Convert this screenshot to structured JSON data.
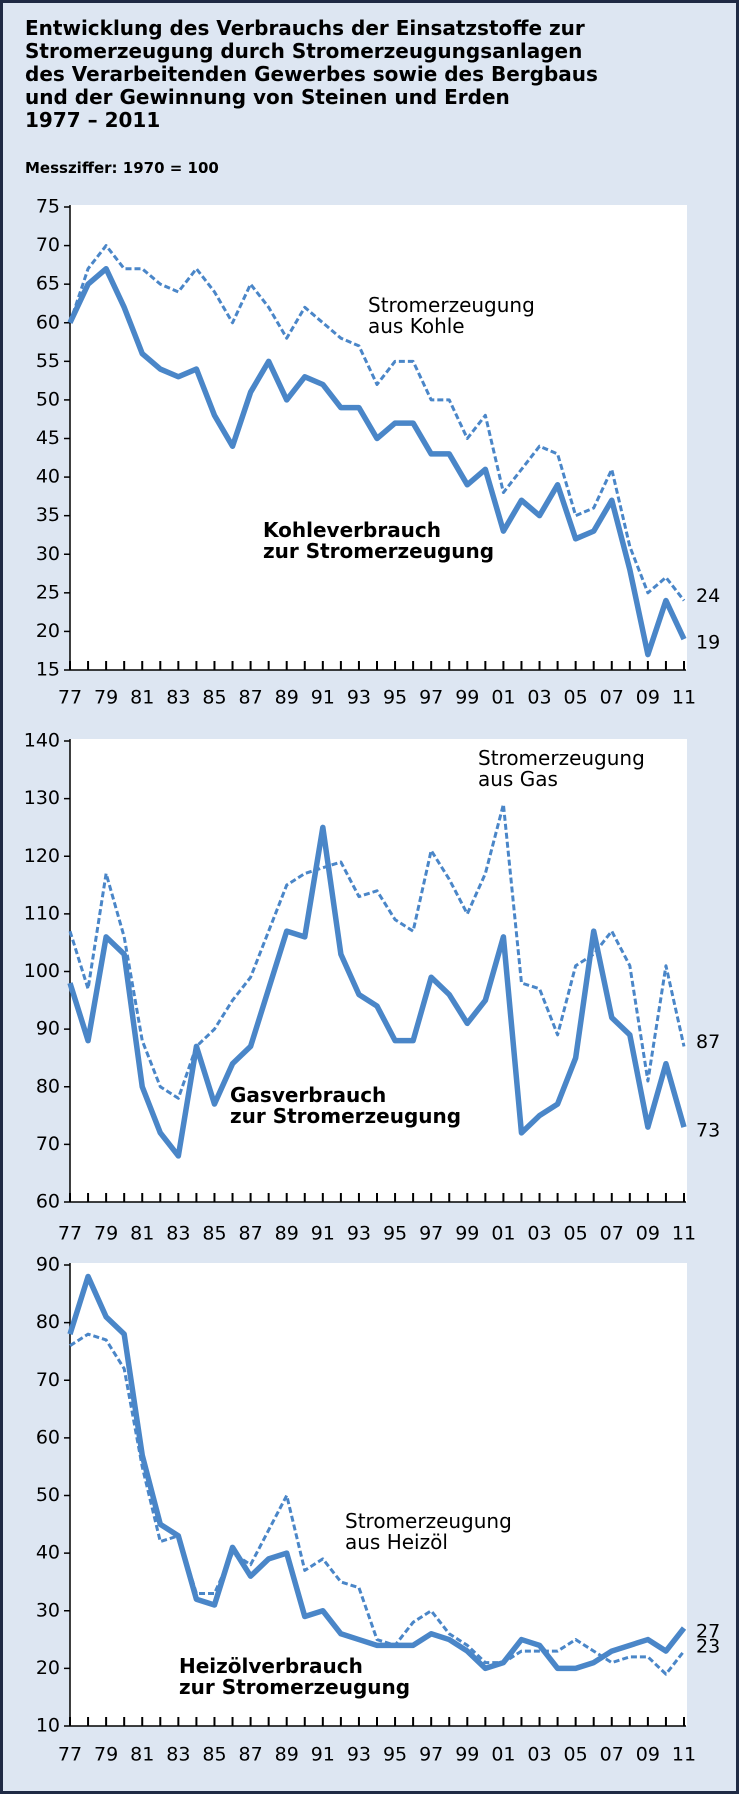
{
  "title": "Entwicklung des Verbrauchs der Einsatzstoffe zur\nStromerzeugung durch Stromerzeugungsanlagen\ndes Verarbeitenden Gewerbes sowie des Bergbaus\nund der Gewinnung von Steinen und Erden\n1977 – 2011",
  "subtitle": "Messziffer: 1970 = 100",
  "chart_data": [
    {
      "type": "line",
      "categories": [
        "77",
        null,
        "79",
        null,
        "81",
        null,
        "83",
        null,
        "85",
        null,
        "87",
        null,
        "89",
        null,
        "91",
        null,
        "93",
        null,
        "95",
        null,
        "97",
        null,
        "99",
        null,
        "01",
        null,
        "03",
        null,
        "05",
        null,
        "07",
        null,
        "09",
        null,
        "11"
      ],
      "ylim": [
        15,
        75
      ],
      "yticks": [
        15,
        20,
        25,
        30,
        35,
        40,
        45,
        50,
        55,
        60,
        65,
        70,
        75
      ],
      "series": [
        {
          "name": "Stromerzeugung\naus Kohle",
          "color": "#4a86c8",
          "style": "dashed",
          "values": [
            60,
            67,
            70,
            67,
            67,
            65,
            64,
            67,
            64,
            60,
            65,
            62,
            58,
            62,
            60,
            58,
            57,
            52,
            55,
            55,
            50,
            50,
            45,
            48,
            38,
            41,
            44,
            43,
            35,
            36,
            41,
            31,
            25,
            27,
            24
          ]
        },
        {
          "name": "Kohleverbrauch\nzur Stromerzeugung",
          "color": "#4a86c8",
          "style": "solid",
          "values": [
            60,
            65,
            67,
            62,
            56,
            54,
            53,
            54,
            48,
            44,
            51,
            55,
            50,
            53,
            52,
            49,
            49,
            45,
            47,
            47,
            43,
            43,
            39,
            41,
            33,
            37,
            35,
            39,
            32,
            33,
            37,
            28,
            17,
            24,
            19
          ]
        }
      ]
    },
    {
      "type": "line",
      "categories": [
        "77",
        null,
        "79",
        null,
        "81",
        null,
        "83",
        null,
        "85",
        null,
        "87",
        null,
        "89",
        null,
        "91",
        null,
        "93",
        null,
        "95",
        null,
        "97",
        null,
        "99",
        null,
        "01",
        null,
        "03",
        null,
        "05",
        null,
        "07",
        null,
        "09",
        null,
        "11"
      ],
      "ylim": [
        60,
        140
      ],
      "yticks": [
        60,
        70,
        80,
        90,
        100,
        110,
        120,
        130,
        140
      ],
      "series": [
        {
          "name": "Stromerzeugung\naus Gas",
          "color": "#4a86c8",
          "style": "dashed",
          "values": [
            107,
            97,
            117,
            106,
            88,
            80,
            78,
            87,
            90,
            95,
            99,
            107,
            115,
            117,
            118,
            119,
            113,
            114,
            109,
            107,
            121,
            116,
            110,
            117,
            129,
            98,
            97,
            89,
            101,
            103,
            107,
            101,
            81,
            101,
            87
          ]
        },
        {
          "name": "Gasverbrauch\nzur Stromerzeugung",
          "color": "#4a86c8",
          "style": "solid",
          "values": [
            98,
            88,
            106,
            103,
            80,
            72,
            68,
            87,
            77,
            84,
            87,
            97,
            107,
            106,
            125,
            103,
            96,
            94,
            88,
            88,
            99,
            96,
            91,
            95,
            106,
            72,
            75,
            77,
            85,
            107,
            92,
            89,
            73,
            84,
            73
          ]
        }
      ]
    },
    {
      "type": "line",
      "categories": [
        "77",
        null,
        "79",
        null,
        "81",
        null,
        "83",
        null,
        "85",
        null,
        "87",
        null,
        "89",
        null,
        "91",
        null,
        "93",
        null,
        "95",
        null,
        "97",
        null,
        "99",
        null,
        "01",
        null,
        "03",
        null,
        "05",
        null,
        "07",
        null,
        "09",
        null,
        "11"
      ],
      "ylim": [
        10,
        90
      ],
      "yticks": [
        10,
        20,
        30,
        40,
        50,
        60,
        70,
        80,
        90
      ],
      "series": [
        {
          "name": "Stromerzeugung\naus Heizöl",
          "color": "#4a86c8",
          "style": "dashed",
          "values": [
            76,
            78,
            77,
            72,
            55,
            42,
            43,
            33,
            33,
            40,
            38,
            44,
            50,
            37,
            39,
            35,
            34,
            25,
            24,
            28,
            30,
            26,
            24,
            21,
            21,
            23,
            23,
            23,
            25,
            23,
            21,
            22,
            22,
            19,
            23
          ]
        },
        {
          "name": "Heizölverbrauch\nzur Stromerzeugung",
          "color": "#4a86c8",
          "style": "solid",
          "values": [
            78,
            88,
            81,
            78,
            57,
            45,
            43,
            32,
            31,
            41,
            36,
            39,
            40,
            29,
            30,
            26,
            25,
            24,
            24,
            24,
            26,
            25,
            23,
            20,
            21,
            25,
            24,
            20,
            20,
            21,
            23,
            24,
            25,
            23,
            27
          ]
        }
      ]
    }
  ]
}
